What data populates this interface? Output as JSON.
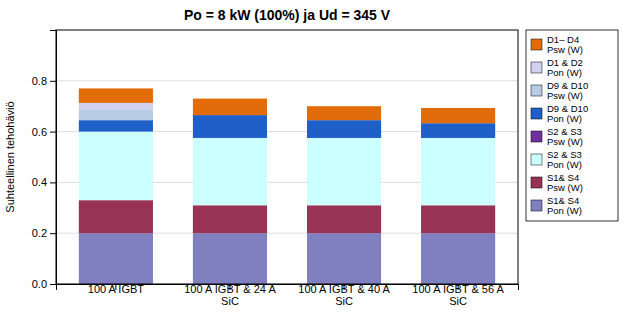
{
  "chart_data": {
    "type": "bar",
    "stacked": true,
    "title": "Po = 8 kW (100%) ja Ud = 345 V",
    "ylabel": "Suhteellinen tehohäviö",
    "categories": [
      "100 A IGBT",
      "100 A IGBT & 24 A\nSiC",
      "100 A IGBT & 40 A\nSiC",
      "100 A IGBT & 56 A\nSiC"
    ],
    "ylim": [
      0,
      1.0
    ],
    "yticks": [
      {
        "value": 0,
        "label": "0.0"
      },
      0.2,
      0.4,
      0.6,
      0.8
    ],
    "grid": true,
    "legend": "right",
    "series": [
      {
        "name": "S1& S4\nPon (W)",
        "color": "#8080c0",
        "values": [
          0.2,
          0.2,
          0.2,
          0.2
        ]
      },
      {
        "name": "S1& S4\nPsw (W)",
        "color": "#993355",
        "values": [
          0.13,
          0.11,
          0.11,
          0.11
        ]
      },
      {
        "name": "S2 & S3\nPon (W)",
        "color": "#ccffff",
        "values": [
          0.27,
          0.265,
          0.265,
          0.265
        ]
      },
      {
        "name": "S2 & S3\nPsw (W)",
        "color": "#7030a0",
        "values": [
          0.0,
          0.0,
          0.0,
          0.0
        ]
      },
      {
        "name": "D9 & D10\nPon (W)",
        "color": "#1f5fc8",
        "values": [
          0.045,
          0.09,
          0.07,
          0.058
        ]
      },
      {
        "name": "D9 & D10\nPsw (W)",
        "color": "#b8cce4",
        "values": [
          0.04,
          0.0,
          0.0,
          0.0
        ]
      },
      {
        "name": "D1 & D2\nPon (W)",
        "color": "#d0d0f0",
        "values": [
          0.028,
          0.0,
          0.0,
          0.0
        ]
      },
      {
        "name": "D1– D4\nPsw (W)",
        "color": "#e26b0a",
        "values": [
          0.057,
          0.065,
          0.055,
          0.06
        ]
      }
    ]
  }
}
